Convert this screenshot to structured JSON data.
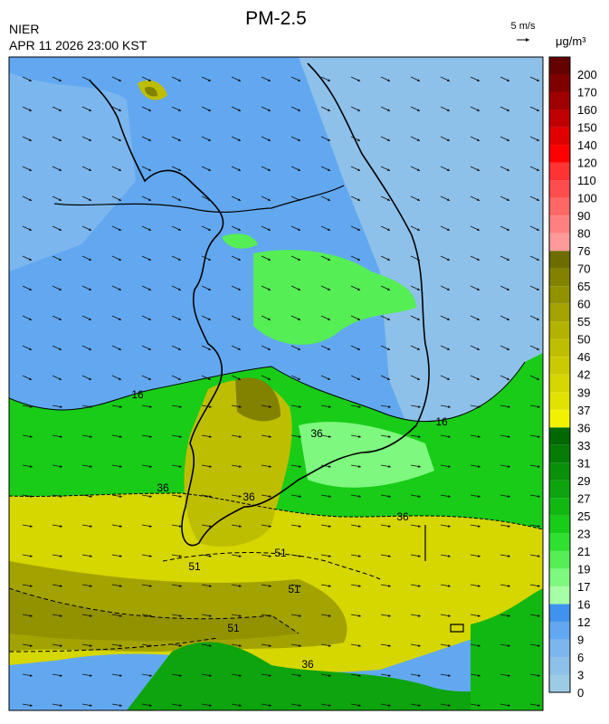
{
  "header": {
    "title": "PM-2.5",
    "agency": "NIER",
    "datetime": "APR 11 2026 23:00 KST",
    "wind_scale": "5 m/s"
  },
  "colorbar": {
    "unit": "μg/m³",
    "labels": [
      0,
      3,
      6,
      9,
      12,
      16,
      17,
      19,
      21,
      23,
      25,
      27,
      29,
      31,
      33,
      36,
      37,
      39,
      42,
      46,
      50,
      55,
      60,
      65,
      70,
      76,
      80,
      90,
      100,
      110,
      120,
      140,
      150,
      160,
      170,
      200
    ],
    "colors": [
      "#9ccbe6",
      "#8ec1ea",
      "#7cb6ee",
      "#62a8f0",
      "#3f93ee",
      "#a6ffa6",
      "#7ef87e",
      "#55ee55",
      "#2fe02f",
      "#18cc18",
      "#12b812",
      "#0da40d",
      "#099009",
      "#057c05",
      "#026802",
      "#f2f200",
      "#e2e200",
      "#d6d600",
      "#caca00",
      "#bebe00",
      "#b2b200",
      "#a2a200",
      "#929200",
      "#828200",
      "#6c6c00",
      "#ff9a9a",
      "#ff8080",
      "#ff6666",
      "#ff4c4c",
      "#ff3333",
      "#ff0000",
      "#e00000",
      "#c00000",
      "#a00000",
      "#800000",
      "#640000"
    ]
  },
  "contour_labels": [
    "16",
    "16",
    "36",
    "36",
    "36",
    "36",
    "36",
    "51",
    "51",
    "51",
    "51"
  ]
}
